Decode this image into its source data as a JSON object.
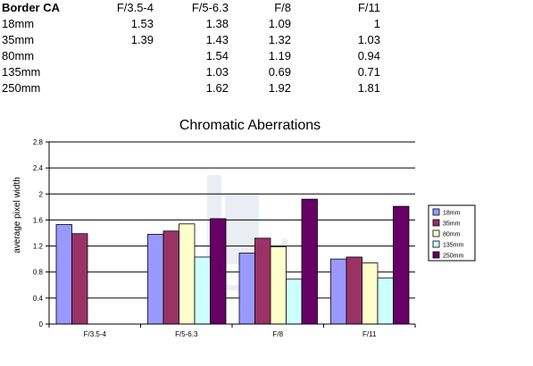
{
  "table": {
    "headers": [
      "Border CA",
      "F/3.5-4",
      "F/5-6.3",
      "F/8",
      "F/11"
    ],
    "rows": [
      [
        "18mm",
        "1.53",
        "1.38",
        "1.09",
        "1"
      ],
      [
        "35mm",
        "1.39",
        "1.43",
        "1.32",
        "1.03"
      ],
      [
        "80mm",
        "",
        "1.54",
        "1.19",
        "0.94"
      ],
      [
        "135mm",
        "",
        "1.03",
        "0.69",
        "0.71"
      ],
      [
        "250mm",
        "",
        "1.62",
        "1.92",
        "1.81"
      ]
    ]
  },
  "chart_data": {
    "type": "bar",
    "title": "Chromatic Aberrations",
    "xlabel": "",
    "ylabel": "average pixel width",
    "categories": [
      "F/3.5-4",
      "F/5-6.3",
      "F/8",
      "F/11"
    ],
    "ylim": [
      0,
      2.8
    ],
    "yticks": [
      "0",
      "0.4",
      "0.8",
      "1.2",
      "1.6",
      "2",
      "2.4",
      "2.8"
    ],
    "grid": true,
    "legend": "right",
    "series": [
      {
        "name": "18mm",
        "values": [
          1.53,
          1.38,
          1.09,
          1
        ],
        "color": "#9999ff"
      },
      {
        "name": "35mm",
        "values": [
          1.39,
          1.43,
          1.32,
          1.03
        ],
        "color": "#993366"
      },
      {
        "name": "80mm",
        "values": [
          null,
          1.54,
          1.19,
          0.94
        ],
        "color": "#ffffcc"
      },
      {
        "name": "135mm",
        "values": [
          null,
          1.03,
          0.69,
          0.71
        ],
        "color": "#ccffff"
      },
      {
        "name": "250mm",
        "values": [
          null,
          1.62,
          1.92,
          1.81
        ],
        "color": "#660066"
      }
    ]
  }
}
